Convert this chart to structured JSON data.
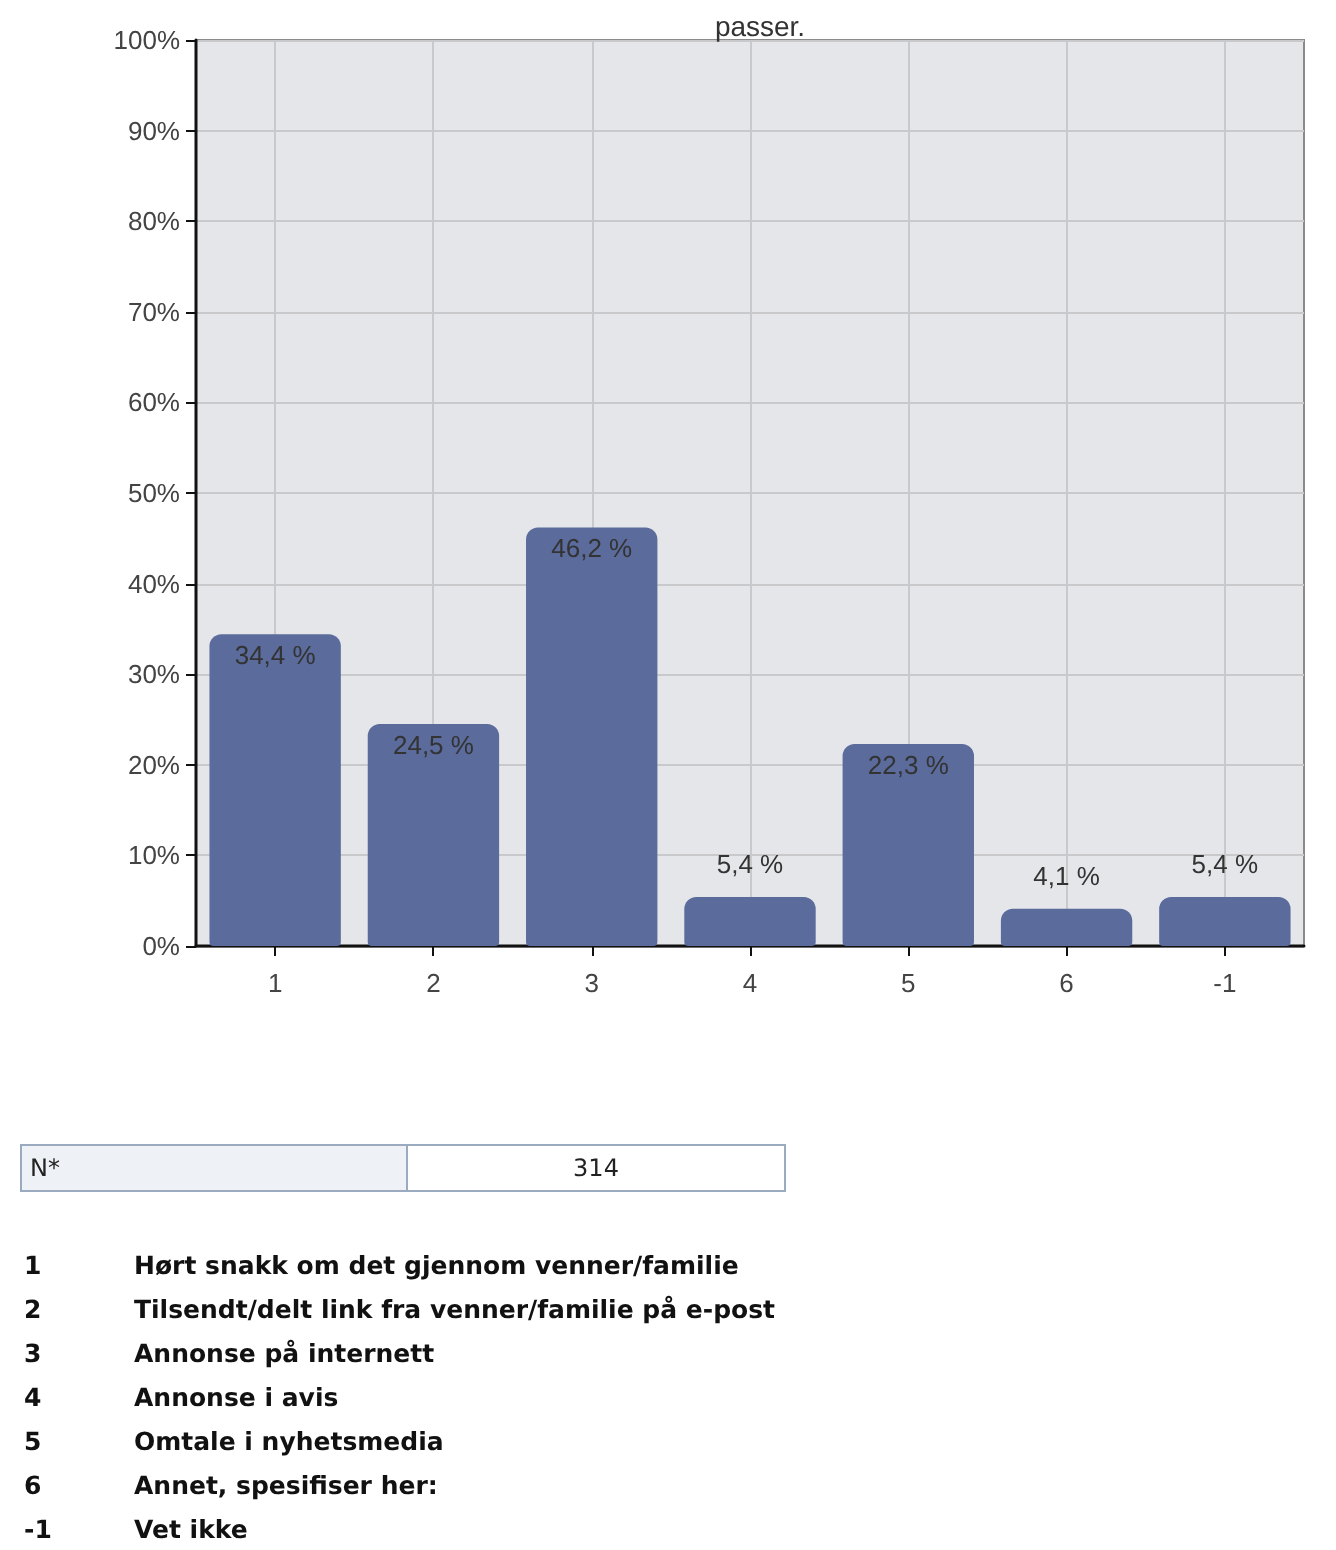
{
  "chart_data": {
    "type": "bar",
    "title": "passer.",
    "categories": [
      "1",
      "2",
      "3",
      "4",
      "5",
      "6",
      "-1"
    ],
    "values": [
      34.4,
      24.5,
      46.2,
      5.4,
      22.3,
      4.1,
      5.4
    ],
    "value_labels": [
      "34,4 %",
      "24,5 %",
      "46,2 %",
      "5,4 %",
      "22,3 %",
      "4,1 %",
      "5,4 %"
    ],
    "color": "#5a6b9c",
    "ylim": [
      0,
      100
    ],
    "yticks": [
      {
        "value": 0,
        "label": "0%"
      },
      {
        "value": 10,
        "label": "10%"
      },
      {
        "value": 20,
        "label": "20%"
      },
      {
        "value": 30,
        "label": "30%"
      },
      {
        "value": 40,
        "label": "40%"
      },
      {
        "value": 50,
        "label": "50%"
      },
      {
        "value": 60,
        "label": "60%"
      },
      {
        "value": 70,
        "label": "70%"
      },
      {
        "value": 80,
        "label": "80%"
      },
      {
        "value": 90,
        "label": "90%"
      },
      {
        "value": 100,
        "label": "100%"
      }
    ],
    "grid": true,
    "annotations": [
      "N*",
      "314",
      "1",
      "Hørt snakk om det gjennom venner/familie",
      "2",
      "Tilsendt/delt link fra venner/familie på e-post",
      "3",
      "Annonse på internett",
      "4",
      "Annonse i avis",
      "5",
      "Omtale i nyhetsmedia",
      "6",
      "Annet, spesifiser her:",
      "-1",
      "Vet ikke"
    ]
  }
}
